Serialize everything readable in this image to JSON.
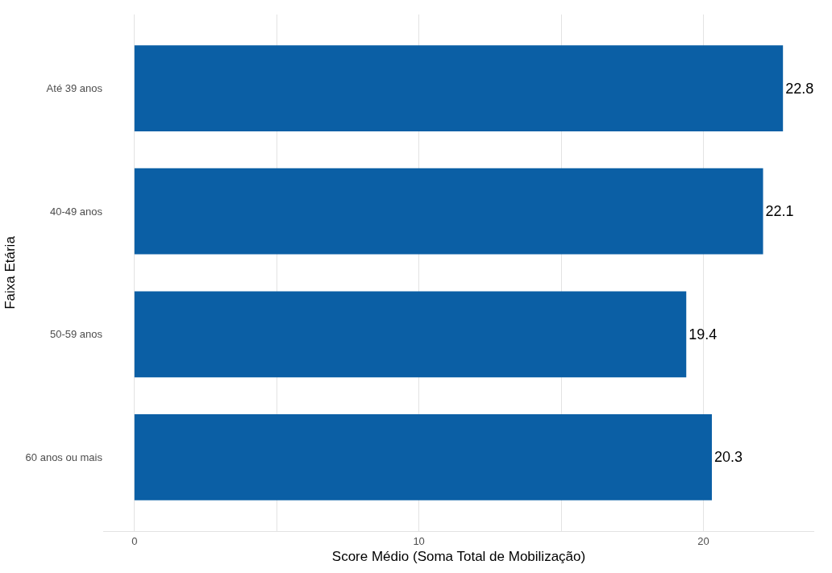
{
  "chart_data": {
    "type": "bar",
    "orientation": "horizontal",
    "xlabel": "Score Médio (Soma Total de Mobilização)",
    "ylabel": "Faixa Etária",
    "categories": [
      "Até 39 anos",
      "40-49 anos",
      "50-59 anos",
      "60 anos ou mais"
    ],
    "values": [
      22.8,
      22.1,
      19.4,
      20.3
    ],
    "color": "#0b5fa5",
    "data_labels": true,
    "xlim": [
      -1.1,
      23.9
    ],
    "xticks": [
      0,
      {
        "value": 5,
        "label": null
      },
      10,
      {
        "value": 15,
        "label": null
      },
      20
    ],
    "grid": "x"
  }
}
